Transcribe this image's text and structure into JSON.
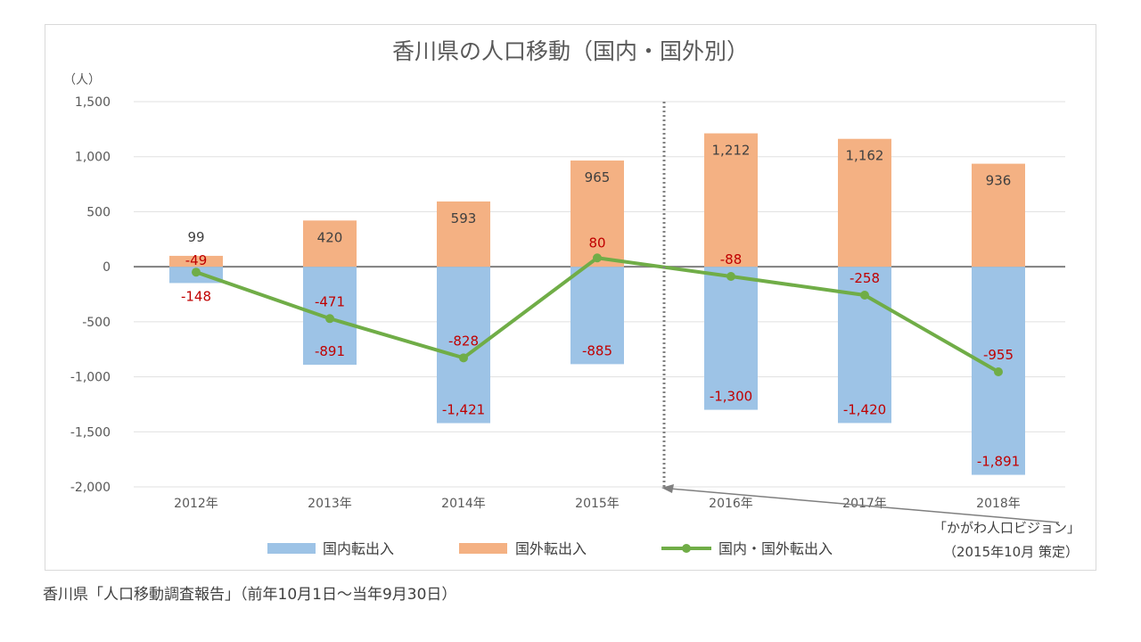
{
  "chart_data": {
    "type": "bar",
    "title": "香川県の人口移動（国内・国外別）",
    "ylabel": "（人）",
    "ylim": [
      -2000,
      1500
    ],
    "yticks": [
      1500,
      1000,
      500,
      0,
      -500,
      -1000,
      -1500,
      -2000
    ],
    "ytick_labels": [
      "1,500",
      "1,000",
      "500",
      "0",
      "-500",
      "-1,000",
      "-1,500",
      "-2,000"
    ],
    "grid": true,
    "categories": [
      "2012年",
      "2013年",
      "2014年",
      "2015年",
      "2016年",
      "2017年",
      "2018年"
    ],
    "series": [
      {
        "name": "国内転出入",
        "type": "bar",
        "color": "#9dc3e6",
        "values": [
          -148,
          -891,
          -1421,
          -885,
          -1300,
          -1420,
          -1891
        ],
        "labels": [
          "-148",
          "-891",
          "-1,421",
          "-885",
          "-1,300",
          "-1,420",
          "-1,891"
        ],
        "label_color": "#c00000"
      },
      {
        "name": "国外転出入",
        "type": "bar",
        "color": "#f4b183",
        "values": [
          99,
          420,
          593,
          965,
          1212,
          1162,
          936
        ],
        "labels": [
          "99",
          "420",
          "593",
          "965",
          "1,212",
          "1,162",
          "936"
        ],
        "label_color": "#404040"
      },
      {
        "name": "国内・国外転出入",
        "type": "line",
        "color": "#70ad47",
        "values": [
          -49,
          -471,
          -828,
          80,
          -88,
          -258,
          -955
        ],
        "labels": [
          "-49",
          "-471",
          "-828",
          "80",
          "-88",
          "-258",
          "-955"
        ],
        "label_color": "#c00000"
      }
    ],
    "legend_position": "bottom",
    "annotation": {
      "line1": "「かがわ人口ビジョン」",
      "line2": "（2015年10月 策定）",
      "position": "between 2015年 and 2016年"
    }
  },
  "source": "香川県「人口移動調査報告」（前年10月1日～当年9月30日）"
}
